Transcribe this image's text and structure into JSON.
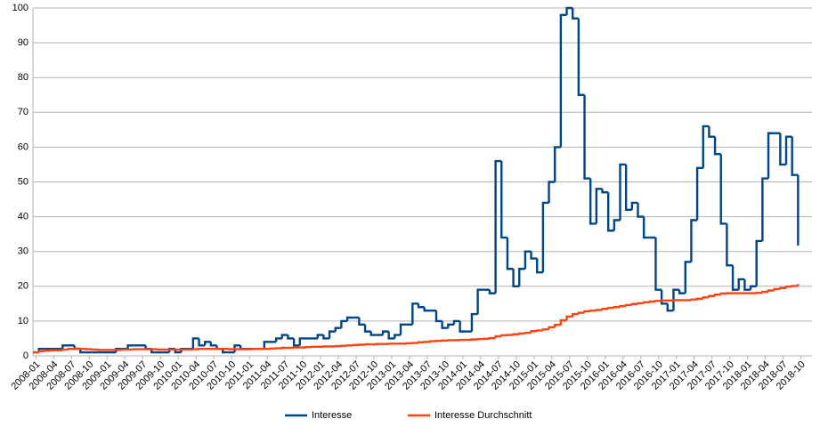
{
  "chart_data": {
    "type": "step-line",
    "categories": [
      "2008-01",
      null,
      null,
      "2008-04",
      null,
      null,
      "2008-07",
      null,
      null,
      "2008-10",
      null,
      null,
      "2009-01",
      null,
      null,
      "2009-04",
      null,
      null,
      "2009-07",
      null,
      null,
      "2009-10",
      null,
      null,
      "2010-01",
      null,
      null,
      "2010-04",
      null,
      null,
      "2010-07",
      null,
      null,
      "2010-10",
      null,
      null,
      "2011-01",
      null,
      null,
      "2011-04",
      null,
      null,
      "2011-07",
      null,
      null,
      "2011-10",
      null,
      null,
      "2012-01",
      null,
      null,
      "2012-04",
      null,
      null,
      "2012-07",
      null,
      null,
      "2012-10",
      null,
      null,
      "2013-01",
      null,
      null,
      "2013-04",
      null,
      null,
      "2013-07",
      null,
      null,
      "2013-10",
      null,
      null,
      "2014-01",
      null,
      null,
      "2014-04",
      null,
      null,
      "2014-07",
      null,
      null,
      "2014-10",
      null,
      null,
      "2015-01",
      null,
      null,
      "2015-04",
      null,
      null,
      "2015-07",
      null,
      null,
      "2015-10",
      null,
      null,
      "2016-01",
      null,
      null,
      "2016-04",
      null,
      null,
      "2016-07",
      null,
      null,
      "2016-10",
      null,
      null,
      "2017-01",
      null,
      null,
      "2017-04",
      null,
      null,
      "2017-07",
      null,
      null,
      "2017-10",
      null,
      null,
      "2018-01",
      null,
      null,
      "2018-04",
      null,
      null,
      "2018-07",
      null,
      null,
      "2018-10"
    ],
    "series": [
      {
        "name": "Interesse",
        "color": "#004586",
        "values": [
          1,
          2,
          2,
          2,
          2,
          3,
          3,
          2,
          1,
          1,
          1,
          1,
          1,
          1,
          2,
          2,
          3,
          3,
          3,
          2,
          1,
          1,
          1,
          2,
          1,
          2,
          2,
          5,
          3,
          4,
          3,
          2,
          1,
          1,
          3,
          2,
          2,
          2,
          2,
          4,
          4,
          5,
          6,
          5,
          3,
          5,
          5,
          5,
          6,
          5,
          7,
          8,
          10,
          11,
          11,
          9,
          7,
          6,
          6,
          7,
          5,
          6,
          9,
          9,
          15,
          14,
          13,
          13,
          10,
          8,
          9,
          10,
          7,
          7,
          12,
          19,
          19,
          18,
          56,
          34,
          25,
          20,
          25,
          30,
          28,
          24,
          44,
          50,
          60,
          98,
          100,
          97,
          75,
          51,
          38,
          48,
          47,
          36,
          39,
          55,
          42,
          44,
          40,
          34,
          34,
          19,
          15,
          13,
          19,
          18,
          27,
          39,
          54,
          66,
          63,
          58,
          38,
          26,
          19,
          22,
          19,
          20,
          33,
          51,
          64,
          64,
          55,
          63,
          52,
          32
        ]
      },
      {
        "name": "Interesse Durchschnitt",
        "color": "#ff420e",
        "values": [
          1,
          1.3,
          1.5,
          1.6,
          1.6,
          1.8,
          2,
          2.1,
          2,
          1.9,
          1.8,
          1.7,
          1.7,
          1.7,
          1.7,
          1.8,
          1.8,
          1.9,
          1.9,
          1.9,
          1.9,
          1.8,
          1.8,
          1.8,
          1.8,
          1.8,
          1.8,
          1.9,
          2,
          2,
          2,
          2,
          2,
          1.9,
          1.9,
          1.9,
          1.9,
          2,
          2,
          2,
          2.1,
          2.2,
          2.3,
          2.3,
          2.4,
          2.4,
          2.5,
          2.6,
          2.6,
          2.7,
          2.7,
          2.8,
          2.9,
          3,
          3.1,
          3.2,
          3.3,
          3.3,
          3.4,
          3.4,
          3.5,
          3.5,
          3.5,
          3.6,
          3.7,
          3.9,
          4,
          4.2,
          4.3,
          4.4,
          4.5,
          4.5,
          4.6,
          4.6,
          4.7,
          4.8,
          4.9,
          5.1,
          5.6,
          5.9,
          6,
          6.2,
          6.4,
          6.6,
          7.1,
          7.3,
          7.6,
          8.2,
          8.9,
          10.2,
          11.3,
          12,
          12.4,
          12.8,
          13,
          13.2,
          13.5,
          13.8,
          14,
          14.3,
          14.6,
          14.9,
          15.1,
          15.4,
          15.6,
          15.8,
          15.9,
          15.9,
          16,
          16,
          16,
          16.2,
          16.4,
          16.8,
          17.2,
          17.6,
          17.9,
          18,
          18,
          18,
          18,
          18,
          18.1,
          18.4,
          18.8,
          19.2,
          19.5,
          19.9,
          20.1,
          20.3
        ]
      }
    ],
    "ylim": [
      0,
      100
    ],
    "yticks": [
      0,
      10,
      20,
      30,
      40,
      50,
      60,
      70,
      80,
      90,
      100
    ],
    "grid": true,
    "legend": "bottom"
  }
}
